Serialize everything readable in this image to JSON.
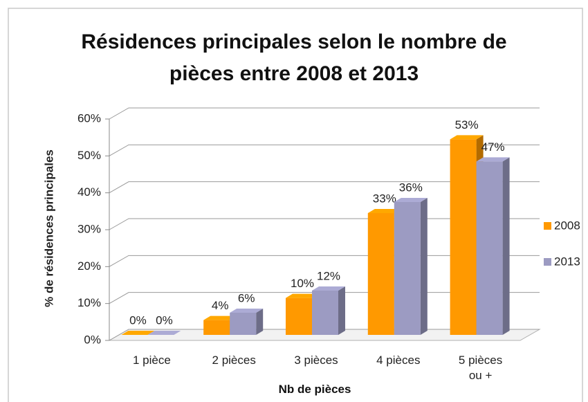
{
  "chart_data": {
    "type": "bar3d",
    "title": "Résidences principales selon le nombre de pièces entre 2008 et 2013",
    "x_label": "Nb de pièces",
    "y_label": "% de résidences principales",
    "categories": [
      "1 pièce",
      "2 pièces",
      "3 pièces",
      "4 pièces",
      "5 pièces ou +"
    ],
    "series": [
      {
        "name": "2008",
        "color": "#ff9900",
        "values": [
          0,
          4,
          10,
          33,
          53
        ],
        "value_labels": [
          "0%",
          "4%",
          "10%",
          "33%",
          "53%"
        ]
      },
      {
        "name": "2013",
        "color": "#9c9bc2",
        "values": [
          0,
          6,
          12,
          36,
          47
        ],
        "value_labels": [
          "0%",
          "6%",
          "12%",
          "36%",
          "47%"
        ]
      }
    ],
    "ylim": [
      0,
      60
    ],
    "yticks": [
      {
        "value": 0,
        "label": "0%"
      },
      {
        "value": 10,
        "label": "10%"
      },
      {
        "value": 20,
        "label": "20%"
      },
      {
        "value": 30,
        "label": "30%"
      },
      {
        "value": 40,
        "label": "40%"
      },
      {
        "value": 50,
        "label": "50%"
      },
      {
        "value": 60,
        "label": "60%"
      }
    ],
    "grid": true,
    "legend": "right"
  }
}
